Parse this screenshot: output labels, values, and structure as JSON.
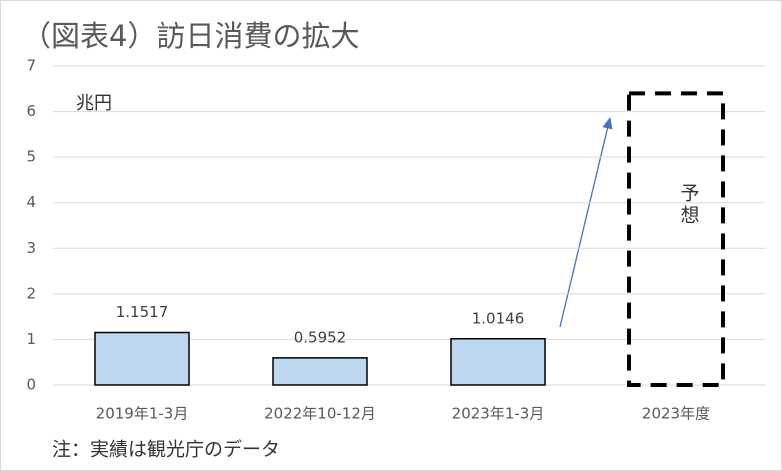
{
  "chart_data": {
    "type": "bar",
    "title": "（図表4）訪日消費の拡大",
    "unit_label": "兆円",
    "categories": [
      "2019年1-3月",
      "2022年10-12月",
      "2023年1-3月",
      "2023年度"
    ],
    "values": [
      1.1517,
      0.5952,
      1.0146,
      6.4
    ],
    "bar_styles": [
      "solid",
      "solid",
      "solid",
      "dashed"
    ],
    "color": "#bdd7ee",
    "annotation": "予想",
    "note": "注：実績は観光庁のデータ",
    "ylim": [
      0,
      7
    ],
    "yticks": [
      0,
      1,
      2,
      3,
      4,
      5,
      6,
      7
    ],
    "grid": true
  }
}
